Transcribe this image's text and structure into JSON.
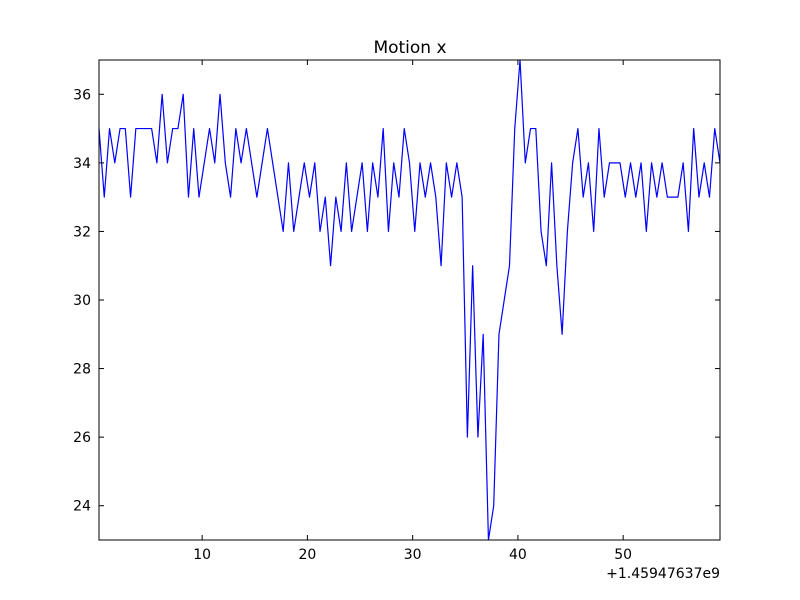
{
  "chart_data": {
    "type": "line",
    "title": "Motion x",
    "x_offset_text": "+1.45947637e9",
    "x": [
      0.2,
      0.7,
      1.2,
      1.7,
      2.2,
      2.7,
      3.2,
      3.7,
      4.2,
      4.7,
      5.2,
      5.7,
      6.2,
      6.7,
      7.2,
      7.7,
      8.2,
      8.7,
      9.2,
      9.7,
      10.2,
      10.7,
      11.2,
      11.7,
      12.2,
      12.7,
      13.2,
      13.7,
      14.2,
      14.7,
      15.2,
      15.7,
      16.2,
      16.7,
      17.2,
      17.7,
      18.2,
      18.7,
      19.2,
      19.7,
      20.2,
      20.7,
      21.2,
      21.7,
      22.2,
      22.7,
      23.2,
      23.7,
      24.2,
      24.7,
      25.2,
      25.7,
      26.2,
      26.7,
      27.2,
      27.7,
      28.2,
      28.7,
      29.2,
      29.7,
      30.2,
      30.7,
      31.2,
      31.7,
      32.2,
      32.7,
      33.2,
      33.7,
      34.2,
      34.7,
      35.2,
      35.7,
      36.2,
      36.7,
      37.2,
      37.7,
      38.2,
      38.7,
      39.2,
      39.7,
      40.2,
      40.7,
      41.2,
      41.7,
      42.2,
      42.7,
      43.2,
      43.7,
      44.2,
      44.7,
      45.2,
      45.7,
      46.2,
      46.7,
      47.2,
      47.7,
      48.2,
      48.7,
      49.2,
      49.7,
      50.2,
      50.7,
      51.2,
      51.7,
      52.2,
      52.7,
      53.2,
      53.7,
      54.2,
      54.7,
      55.2,
      55.7,
      56.2,
      56.7,
      57.2,
      57.7,
      58.2,
      58.7,
      59.2
    ],
    "series": [
      {
        "color": "#0000ff",
        "values": [
          35,
          33,
          35,
          34,
          35,
          35,
          33,
          35,
          35,
          35,
          35,
          34,
          36,
          34,
          35,
          35,
          36,
          33,
          35,
          33,
          34,
          35,
          34,
          36,
          34,
          33,
          35,
          34,
          35,
          34,
          33,
          34,
          35,
          34,
          33,
          32,
          34,
          32,
          33,
          34,
          33,
          34,
          32,
          33,
          31,
          33,
          32,
          34,
          32,
          33,
          34,
          32,
          34,
          33,
          35,
          32,
          34,
          33,
          35,
          34,
          32,
          34,
          33,
          34,
          33,
          31,
          34,
          33,
          34,
          33,
          26,
          31,
          26,
          29,
          23,
          24,
          29,
          30,
          31,
          35,
          37,
          34,
          35,
          35,
          32,
          31,
          34,
          31,
          29,
          32,
          34,
          35,
          33,
          34,
          32,
          35,
          33,
          34,
          34,
          34,
          33,
          34,
          33,
          34,
          32,
          34,
          33,
          34,
          33,
          33,
          33,
          34,
          32,
          35,
          33,
          34,
          33,
          35,
          34
        ]
      }
    ],
    "xlim": [
      0.2,
      59.2
    ],
    "ylim": [
      23,
      37
    ],
    "xticks": [
      10,
      20,
      30,
      40,
      50
    ],
    "yticks": [
      24,
      26,
      28,
      30,
      32,
      34,
      36
    ],
    "grid": false
  }
}
